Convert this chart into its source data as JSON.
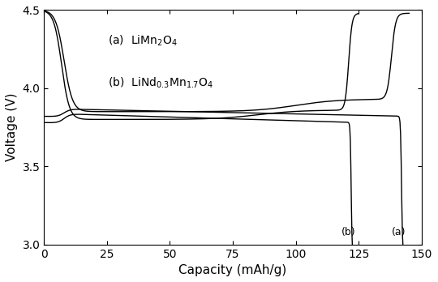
{
  "xlabel": "Capacity (mAh/g)",
  "ylabel": "Voltage (V)",
  "xlim": [
    0,
    150
  ],
  "ylim": [
    3.0,
    4.5
  ],
  "xticks": [
    0,
    25,
    50,
    75,
    100,
    125,
    150
  ],
  "yticks": [
    3.0,
    3.5,
    4.0,
    4.5
  ],
  "legend_a": "(a)  LiMn$_2$O$_4$",
  "legend_b": "(b)  LiNd$_{0.3}$Mn$_{1.7}$O$_4$",
  "label_a": "(a)",
  "label_b": "(b)",
  "line_color": "#000000",
  "background": "#ffffff",
  "figsize": [
    5.4,
    3.48
  ],
  "dpi": 100,
  "cap_a_max": 145,
  "cap_b_max": 125
}
